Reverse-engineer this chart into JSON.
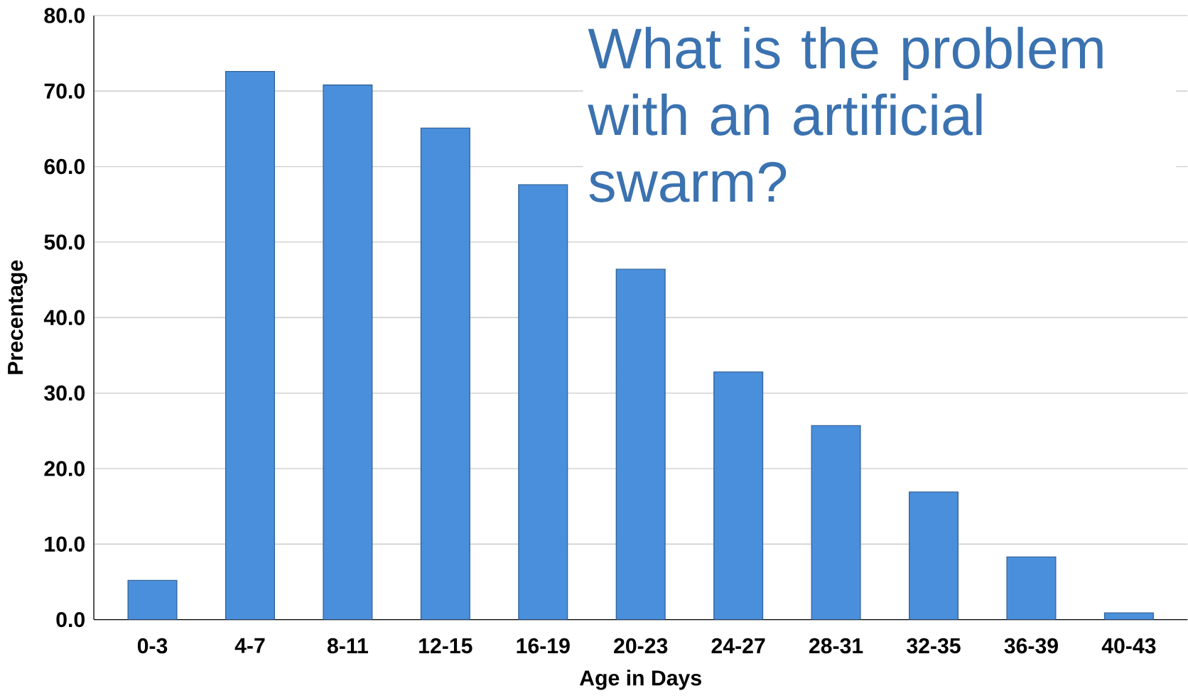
{
  "chart_data": {
    "type": "bar",
    "xlabel": "Age in Days",
    "ylabel": "Precentage",
    "categories": [
      "0-3",
      "4-7",
      "8-11",
      "12-15",
      "16-19",
      "20-23",
      "24-27",
      "28-31",
      "32-35",
      "36-39",
      "40-43"
    ],
    "values": [
      5.2,
      72.6,
      70.8,
      65.1,
      57.6,
      46.4,
      32.8,
      25.7,
      16.9,
      8.3,
      0.9
    ],
    "color": "#4a8fdc",
    "ylim": [
      0,
      80
    ],
    "yticks": [
      {
        "value": 0,
        "label": "0.0"
      },
      {
        "value": 10,
        "label": "10.0"
      },
      {
        "value": 20,
        "label": "20.0"
      },
      {
        "value": 30,
        "label": "30.0"
      },
      {
        "value": 40,
        "label": "40.0"
      },
      {
        "value": 50,
        "label": "50.0"
      },
      {
        "value": 60,
        "label": "60.0"
      },
      {
        "value": 70,
        "label": "70.0"
      },
      {
        "value": 80,
        "label": "80.0"
      }
    ],
    "grid": "y",
    "annotations": [
      "What is the problem with an artificial swarm?"
    ]
  }
}
